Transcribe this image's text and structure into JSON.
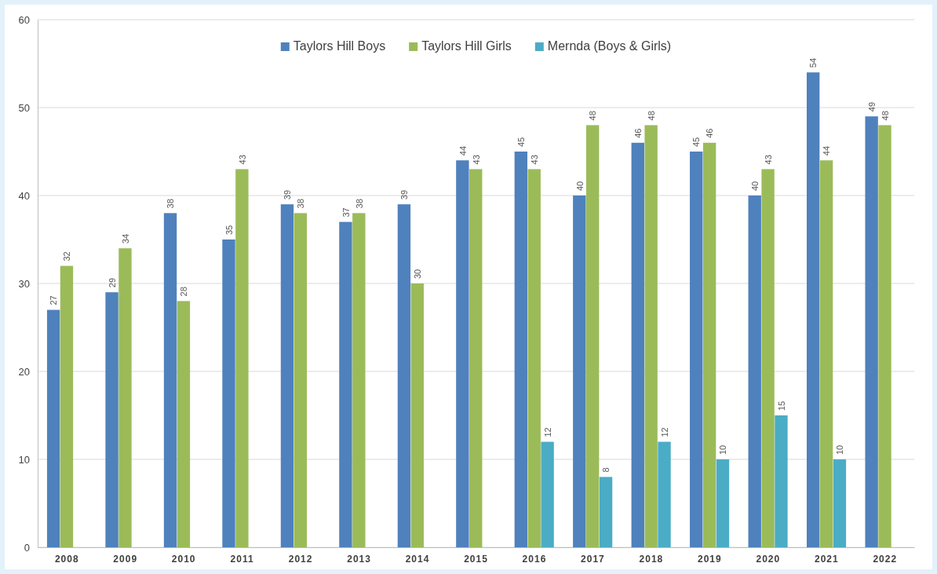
{
  "chart_data": {
    "type": "bar",
    "categories": [
      "2008",
      "2009",
      "2010",
      "2011",
      "2012",
      "2013",
      "2014",
      "2015",
      "2016",
      "2017",
      "2018",
      "2019",
      "2020",
      "2021",
      "2022"
    ],
    "series": [
      {
        "name": "Taylors Hill Boys",
        "color": "#4f81bd",
        "values": [
          27,
          29,
          38,
          35,
          39,
          37,
          39,
          44,
          45,
          40,
          46,
          45,
          40,
          54,
          49
        ]
      },
      {
        "name": "Taylors Hill Girls",
        "color": "#9bbb59",
        "values": [
          32,
          34,
          28,
          43,
          38,
          38,
          30,
          43,
          43,
          48,
          48,
          46,
          43,
          44,
          48
        ]
      },
      {
        "name": "Mernda (Boys & Girls)",
        "color": "#4bacc6",
        "values": [
          null,
          null,
          null,
          null,
          null,
          null,
          null,
          null,
          12,
          8,
          12,
          10,
          15,
          10,
          null
        ]
      }
    ],
    "ylim": [
      0,
      60
    ],
    "yticks": [
      0,
      10,
      20,
      30,
      40,
      50,
      60
    ],
    "grid": "y",
    "legend": "top",
    "data_labels": true
  }
}
